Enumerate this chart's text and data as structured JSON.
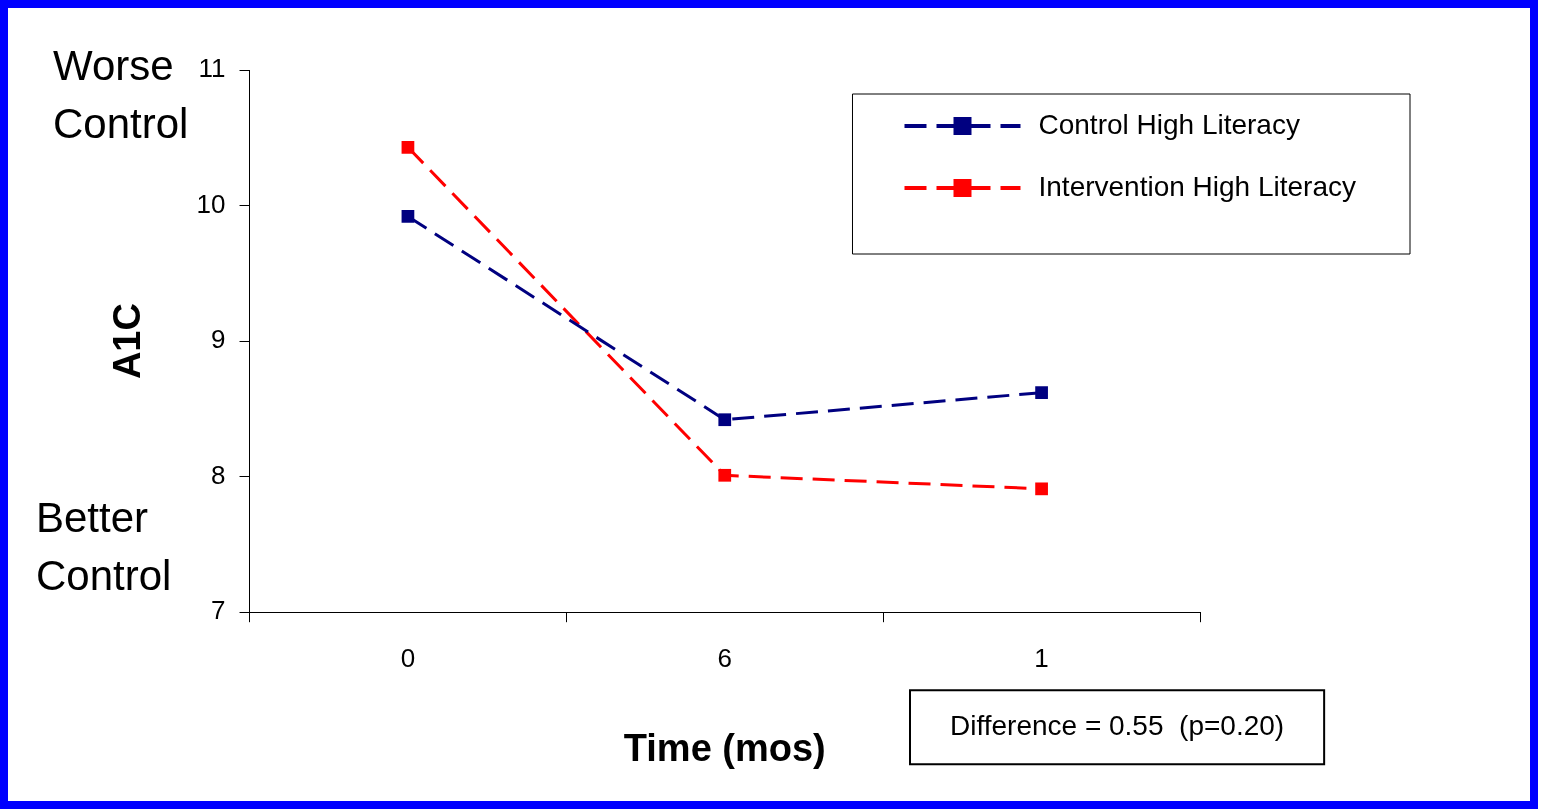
{
  "chart_data": {
    "type": "line",
    "xlabel": "Time (mos)",
    "ylabel": "A1C",
    "categories": [
      "0",
      "6",
      "1"
    ],
    "series": [
      {
        "name": "Control High Literacy",
        "color": "#000080",
        "values": [
          9.92,
          8.42,
          8.62
        ]
      },
      {
        "name": "Intervention High Literacy",
        "color": "#ff0000",
        "values": [
          10.43,
          8.01,
          7.91
        ]
      }
    ],
    "ylim": [
      7,
      11
    ],
    "yticks": [
      7,
      8,
      9,
      10,
      11
    ],
    "grid": false,
    "legend": "top right",
    "marker": "square",
    "line_style": "dashed",
    "annotations": [
      "Worse Control",
      "Better Control",
      "Difference = 0.55  (p=0.20)"
    ]
  }
}
